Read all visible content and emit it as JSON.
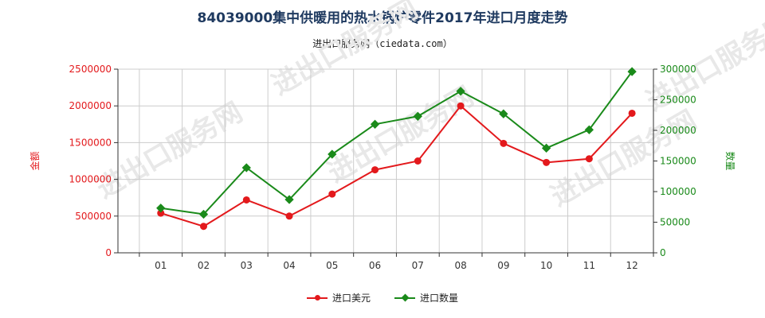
{
  "title": "84039000集中供暖用的热水锅炉零件2017年进口月度走势",
  "subtitle": "进出口服务网（ciedata.com）",
  "watermark": "进出口服务网",
  "colors": {
    "amount": "#e3191c",
    "quantity": "#1a8a1a",
    "grid": "#cccccc",
    "axis": "#333333"
  },
  "chart_data": {
    "type": "line",
    "x": [
      "01",
      "02",
      "03",
      "04",
      "05",
      "06",
      "07",
      "08",
      "09",
      "10",
      "11",
      "12"
    ],
    "ylabel_left": "金额",
    "ylabel_right": "数量",
    "ylim_left": [
      0,
      2500000
    ],
    "ylim_right": [
      0,
      300000
    ],
    "left_ticks": [
      "0",
      "500000",
      "1000000",
      "1500000",
      "2000000",
      "2500000"
    ],
    "right_ticks": [
      "0",
      "50000",
      "100000",
      "150000",
      "200000",
      "250000",
      "300000"
    ],
    "grid": true,
    "legend_position": "bottom-center",
    "series": [
      {
        "name": "进口美元",
        "axis": "left",
        "marker": "circle",
        "color": "#e3191c",
        "values": [
          540000,
          360000,
          720000,
          500000,
          800000,
          1130000,
          1250000,
          2000000,
          1490000,
          1230000,
          1280000,
          1900000
        ]
      },
      {
        "name": "进口数量",
        "axis": "right",
        "marker": "diamond",
        "color": "#1a8a1a",
        "values": [
          73000,
          63000,
          139000,
          87000,
          161000,
          210000,
          223000,
          264000,
          227000,
          171000,
          201000,
          296000
        ]
      }
    ]
  }
}
